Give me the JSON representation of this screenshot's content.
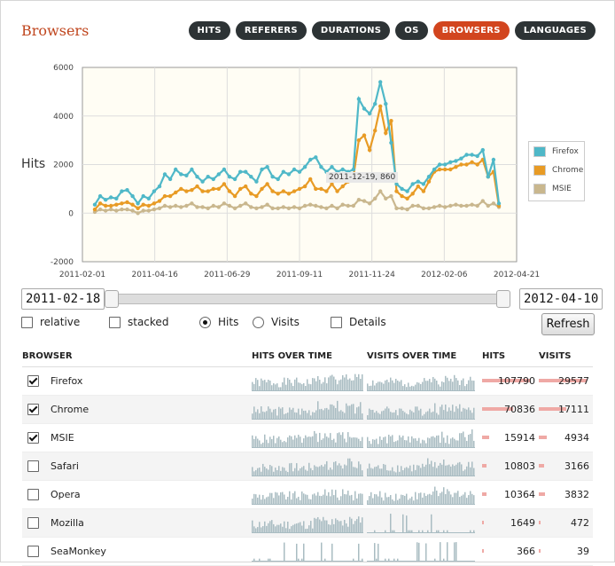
{
  "page": {
    "title": "Browsers"
  },
  "tabs": [
    {
      "label": "HITS",
      "active": false
    },
    {
      "label": "REFERERS",
      "active": false
    },
    {
      "label": "DURATIONS",
      "active": false
    },
    {
      "label": "OS",
      "active": false
    },
    {
      "label": "BROWSERS",
      "active": true
    },
    {
      "label": "LANGUAGES",
      "active": false
    }
  ],
  "colors": {
    "accent": "#d2451e",
    "tab_bg": "#2d3335",
    "firefox": "#4fb8c8",
    "chrome": "#e89b25",
    "msie": "#c9b78e",
    "spark": "#a9bcc2",
    "bar": "#efa9a5"
  },
  "chart_data": {
    "type": "line",
    "ylabel": "Hits",
    "xlabel": "",
    "ylim": [
      -2000,
      6000
    ],
    "yticks": [
      "6000",
      "4000",
      "2000",
      "0",
      "-2000"
    ],
    "xticks": [
      "2011-02-01",
      "2011-04-16",
      "2011-06-29",
      "2011-09-11",
      "2011-11-24",
      "2012-02-06",
      "2012-04-21"
    ],
    "grid": true,
    "legend_position": "right",
    "tooltip": "2011-12-19, 860",
    "series": [
      {
        "name": "Firefox",
        "values": [
          350,
          700,
          550,
          650,
          600,
          900,
          950,
          700,
          400,
          700,
          600,
          900,
          1100,
          1600,
          1400,
          1800,
          1600,
          1550,
          1800,
          1500,
          1300,
          1500,
          1400,
          1600,
          1800,
          1500,
          1400,
          1700,
          1700,
          1500,
          1300,
          1800,
          1900,
          1500,
          1400,
          1700,
          1600,
          1800,
          1700,
          1900,
          2200,
          2300,
          1900,
          1700,
          1900,
          1700,
          1800,
          1700,
          1800,
          4700,
          4300,
          4100,
          4500,
          5400,
          4500,
          2900,
          1200,
          1000,
          900,
          1200,
          1300,
          1200,
          1500,
          1800,
          2000,
          2000,
          2100,
          2150,
          2250,
          2400,
          2400,
          2350,
          2600,
          1500,
          2200,
          400
        ]
      },
      {
        "name": "Chrome",
        "values": [
          150,
          400,
          300,
          300,
          350,
          400,
          450,
          350,
          200,
          350,
          300,
          400,
          500,
          700,
          700,
          850,
          1000,
          900,
          950,
          1100,
          900,
          900,
          1000,
          1000,
          1200,
          900,
          700,
          1000,
          1100,
          800,
          700,
          1000,
          1200,
          900,
          800,
          900,
          800,
          900,
          1000,
          1100,
          1400,
          1000,
          1000,
          900,
          1200,
          900,
          1100,
          1300,
          1500,
          3000,
          3200,
          2600,
          3400,
          4400,
          3300,
          3800,
          900,
          700,
          600,
          800,
          1100,
          900,
          1300,
          1700,
          1800,
          1800,
          1800,
          1900,
          2000,
          2000,
          2100,
          2000,
          2200,
          1500,
          1700,
          300
        ]
      },
      {
        "name": "MSIE",
        "values": [
          50,
          150,
          100,
          150,
          100,
          150,
          150,
          100,
          0,
          100,
          100,
          150,
          200,
          300,
          250,
          300,
          250,
          300,
          400,
          250,
          250,
          200,
          300,
          250,
          400,
          300,
          200,
          300,
          400,
          250,
          200,
          250,
          350,
          200,
          200,
          250,
          200,
          250,
          200,
          300,
          350,
          300,
          250,
          200,
          300,
          200,
          350,
          300,
          300,
          550,
          500,
          400,
          600,
          900,
          600,
          700,
          200,
          200,
          150,
          300,
          300,
          200,
          200,
          250,
          300,
          250,
          300,
          350,
          300,
          300,
          350,
          300,
          500,
          300,
          400,
          250
        ]
      }
    ]
  },
  "controls": {
    "start_date": "2011-02-18",
    "end_date": "2012-04-10",
    "range_start_fraction": 0.0,
    "range_end_fraction": 1.0,
    "options": [
      {
        "label": "relative",
        "type": "checkbox",
        "checked": false
      },
      {
        "label": "stacked",
        "type": "checkbox",
        "checked": false
      },
      {
        "label": "Hits",
        "type": "radio",
        "checked": true
      },
      {
        "label": "Visits",
        "type": "radio",
        "checked": false
      },
      {
        "label": "Details",
        "type": "checkbox",
        "checked": false
      }
    ],
    "refresh_label": "Refresh"
  },
  "table": {
    "headers": [
      "BROWSER",
      "HITS OVER TIME",
      "VISITS OVER TIME",
      "HITS",
      "VISITS"
    ],
    "rows": [
      {
        "name": "Firefox",
        "checked": true,
        "hits": "107790",
        "visits": "29577",
        "hits_value": 107790,
        "visits_value": 29577
      },
      {
        "name": "Chrome",
        "checked": true,
        "hits": "70836",
        "visits": "17111",
        "hits_value": 70836,
        "visits_value": 17111
      },
      {
        "name": "MSIE",
        "checked": true,
        "hits": "15914",
        "visits": "4934",
        "hits_value": 15914,
        "visits_value": 4934
      },
      {
        "name": "Safari",
        "checked": false,
        "hits": "10803",
        "visits": "3166",
        "hits_value": 10803,
        "visits_value": 3166
      },
      {
        "name": "Opera",
        "checked": false,
        "hits": "10364",
        "visits": "3832",
        "hits_value": 10364,
        "visits_value": 3832
      },
      {
        "name": "Mozilla",
        "checked": false,
        "hits": "1649",
        "visits": "472",
        "hits_value": 1649,
        "visits_value": 472
      },
      {
        "name": "SeaMonkey",
        "checked": false,
        "hits": "366",
        "visits": "39",
        "hits_value": 366,
        "visits_value": 39
      }
    ]
  }
}
